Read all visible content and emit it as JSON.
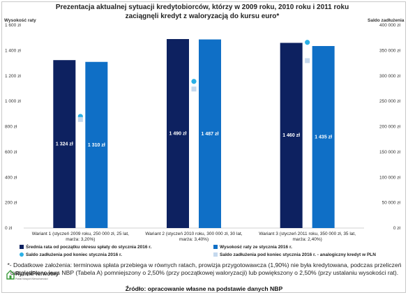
{
  "chart_data": {
    "type": "bar",
    "title": "Prezentacja aktualnej sytuacji kredytobiorców, którzy w 2009 roku, 2010 roku i 2011 roku zaciągnęli kredyt z waloryzacją do kursu euro*",
    "ylabel": "Wysokość raty",
    "y2label": "Saldo zadłużenia",
    "ylim": [
      0,
      1600
    ],
    "y2lim": [
      0,
      400000
    ],
    "yticks": [
      "0 zł",
      "200 zł",
      "400 zł",
      "600 zł",
      "800 zł",
      "1 000 zł",
      "1 200 zł",
      "1 400 zł",
      "1 600 zł"
    ],
    "y2ticks": [
      "0 zł",
      "50 000 zł",
      "100 000 zł",
      "150 000 zł",
      "200 000 zł",
      "250 000 zł",
      "300 000 zł",
      "350 000 zł",
      "400 000 zł"
    ],
    "categories": [
      "Wariant 1 (styczeń 2009 roku, 250 000 zł, 25 lat, marża: 3,20%)",
      "Wariant 2 (styczeń 2010 roku, 300 000 zł, 30 lat, marża: 3,40%)",
      "Wariant 3 (styczeń 2011 roku, 350 000 zł, 35 lat, marża: 2,40%)"
    ],
    "category_lines": [
      [
        "Wariant 1 (styczeń 2009 roku, 250 000 zł, 25 lat,",
        "marża: 3,20%)"
      ],
      [
        "Wariant 2 (styczeń 2010 roku, 300 000 zł, 30 lat,",
        "marża: 3,40%)"
      ],
      [
        "Wariant 3 (styczeń 2011 roku, 350 000 zł, 35 lat,",
        "marża: 2,40%)"
      ]
    ],
    "series": [
      {
        "name": "Średnia rata od początku okresu spłaty do stycznia 2016 r.",
        "axis": "left",
        "kind": "bar",
        "color": "#0d2160",
        "values": [
          1324,
          1490,
          1460
        ],
        "labels": [
          "1 324 zł",
          "1 490 zł",
          "1 460 zł"
        ]
      },
      {
        "name": "Wysokość raty ze stycznia 2016 r.",
        "axis": "left",
        "kind": "bar",
        "color": "#0f6fc6",
        "values": [
          1310,
          1487,
          1435
        ],
        "labels": [
          "1 310 zł",
          "1 487 zł",
          "1 435 zł"
        ]
      },
      {
        "name": "Saldo zadłużenia pod koniec stycznia 2016 r.",
        "axis": "right",
        "kind": "marker-circle",
        "color": "#2bb0e6",
        "values": [
          220000,
          289000,
          366000
        ]
      },
      {
        "name": "Saldo zadłużenia pod koniec stycznia 2016 r. - analogiczny kredyt w PLN",
        "axis": "right",
        "kind": "marker-square",
        "color": "#c5d9ee",
        "values": [
          214000,
          274000,
          330000
        ]
      }
    ],
    "legend_position": "bottom",
    "grid": false
  },
  "footnote": "*- Dodatkowe założenia: terminowa spłata przebiega w równych ratach, prowizja przygotowawcza (1,90%) nie była kredytowana, podczas przeliczeń uwzględniono kurs NBP (Tabela A) pomniejszony o 2,50% (przy początkowej waloryzacji) lub powiększony o 2,50% (przy ustalaniu wysokości rat).",
  "source": "Źródło: opracowanie własne na podstawie danych NBP",
  "logo": {
    "name": "RynekPierwotny",
    "tagline": "Portal Nowych Nieruchomości"
  }
}
